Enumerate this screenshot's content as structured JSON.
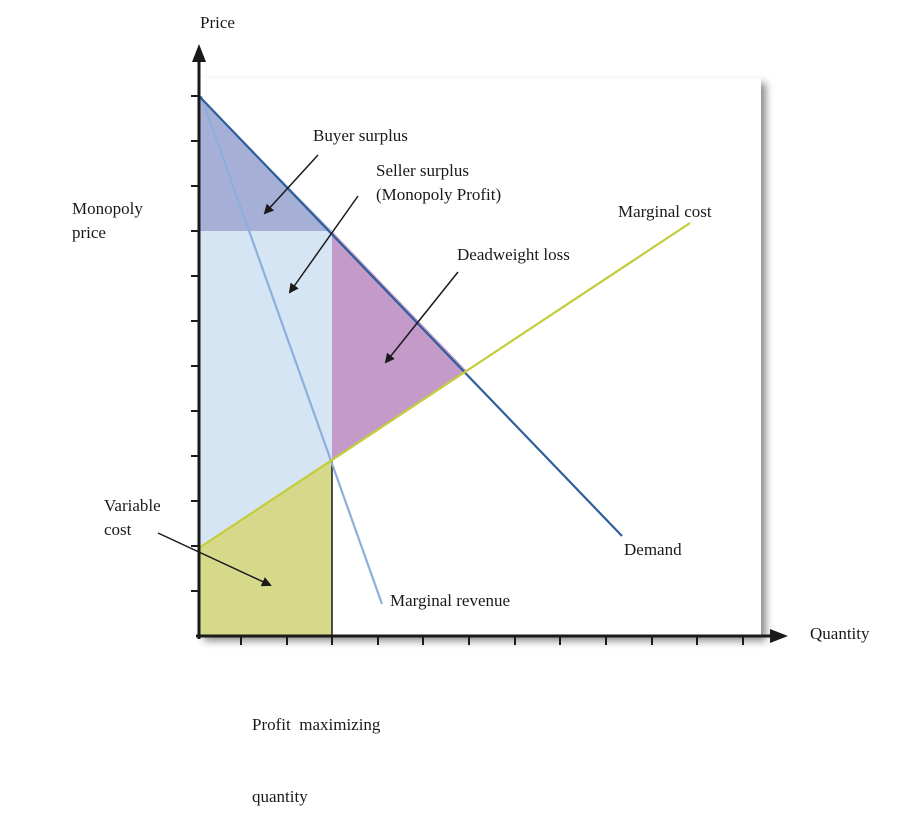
{
  "axes": {
    "y_label": "Price",
    "x_label": "Quantity"
  },
  "labels": {
    "buyer_surplus": "Buyer surplus",
    "seller_surplus_line1": "Seller surplus",
    "seller_surplus_line2": "(Monopoly Profit)",
    "marginal_cost": "Marginal cost",
    "monopoly_price_line1": "Monopoly",
    "monopoly_price_line2": "price",
    "deadweight_loss": "Deadweight loss",
    "variable_cost_line1": "Variable",
    "variable_cost_line2": "cost",
    "demand": "Demand",
    "marginal_revenue": "Marginal revenue",
    "profit_qty_line1": "Profit  maximizing",
    "profit_qty_line2": "quantity"
  },
  "colors": {
    "demand": "#2e5e9a",
    "marginal_revenue": "#8eaedb",
    "marginal_cost": "#c3cd3a",
    "buyer_surplus": "#a6b0d6",
    "seller_surplus": "#d5e5f3",
    "deadweight_loss": "#c49ac9",
    "variable_cost": "#d6d98a",
    "axis": "#1a1a1a"
  }
}
